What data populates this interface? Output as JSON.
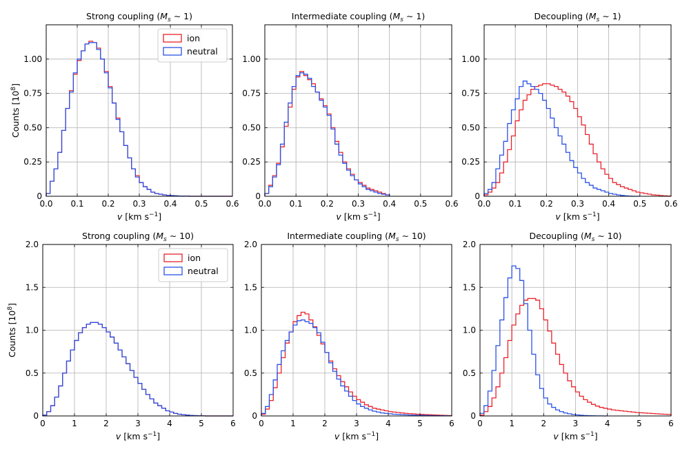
{
  "figure": {
    "ylabel": "Counts [10",
    "ylabel_sup": "8",
    "ylabel_end": "]",
    "xlabel_v": "v",
    "xlabel_units": " [km s",
    "xlabel_exp": "−1",
    "xlabel_end": "]",
    "colors": {
      "ion": "#e8212a",
      "neutral": "#2950e6",
      "grid": "#b0b0b0"
    }
  },
  "chart_data": [
    {
      "type": "histogram",
      "title": "Strong coupling (",
      "title_math": "M",
      "title_sub": "s",
      "title_end": " ∼ 1)",
      "xlim": [
        0,
        0.6
      ],
      "ylim": [
        0,
        1.25
      ],
      "xticks": [
        0,
        0.1,
        0.2,
        0.3,
        0.4,
        0.5,
        0.6
      ],
      "xtick_labels": [
        "0.0",
        "0.1",
        "0.2",
        "0.3",
        "0.4",
        "0.5",
        "0.6"
      ],
      "yticks": [
        0,
        0.25,
        0.5,
        0.75,
        1.0
      ],
      "ytick_labels": [
        "0",
        "0.25",
        "0.50",
        "0.75",
        "1.00"
      ],
      "show_ylabel": true,
      "legend": [
        "ion",
        "neutral"
      ],
      "series": [
        {
          "name": "ion",
          "color": "#e8212a",
          "edges": [
            0,
            0.6
          ],
          "values": [
            0.02,
            0.11,
            0.2,
            0.32,
            0.48,
            0.64,
            0.77,
            0.89,
            0.99,
            1.06,
            1.11,
            1.13,
            1.12,
            1.08,
            1.0,
            0.91,
            0.8,
            0.68,
            0.57,
            0.47,
            0.37,
            0.28,
            0.2,
            0.15,
            0.1,
            0.07,
            0.05,
            0.03,
            0.02,
            0.015,
            0.01,
            0.007,
            0.005,
            0.003,
            0.002,
            0.001,
            0.001,
            0,
            0,
            0,
            0,
            0,
            0,
            0,
            0,
            0,
            0,
            0
          ]
        },
        {
          "name": "neutral",
          "color": "#2950e6",
          "edges": [
            0,
            0.6
          ],
          "values": [
            0.02,
            0.11,
            0.2,
            0.32,
            0.48,
            0.64,
            0.76,
            0.9,
            1.0,
            1.06,
            1.11,
            1.12,
            1.12,
            1.07,
            1.0,
            0.9,
            0.79,
            0.68,
            0.56,
            0.47,
            0.37,
            0.28,
            0.2,
            0.14,
            0.1,
            0.07,
            0.05,
            0.03,
            0.02,
            0.015,
            0.01,
            0.007,
            0.005,
            0.003,
            0.002,
            0.001,
            0.001,
            0,
            0,
            0,
            0,
            0,
            0,
            0,
            0,
            0,
            0,
            0
          ]
        }
      ]
    },
    {
      "type": "histogram",
      "title": "Intermediate coupling (",
      "title_math": "M",
      "title_sub": "s",
      "title_end": " ∼ 1)",
      "xlim": [
        0,
        0.6
      ],
      "ylim": [
        0,
        1.25
      ],
      "xticks": [
        0,
        0.1,
        0.2,
        0.3,
        0.4,
        0.5,
        0.6
      ],
      "xtick_labels": [
        "0.0",
        "0.1",
        "0.2",
        "0.3",
        "0.4",
        "0.5",
        "0.6"
      ],
      "yticks": [
        0,
        0.25,
        0.5,
        0.75,
        1.0
      ],
      "ytick_labels": [
        "0",
        "0.25",
        "0.50",
        "0.75",
        "1.00"
      ],
      "show_ylabel": false,
      "legend": [],
      "series": [
        {
          "name": "ion",
          "color": "#e8212a",
          "edges": [
            0,
            0.4
          ],
          "values": [
            0.02,
            0.08,
            0.15,
            0.24,
            0.36,
            0.51,
            0.65,
            0.78,
            0.87,
            0.91,
            0.88,
            0.85,
            0.82,
            0.76,
            0.71,
            0.66,
            0.6,
            0.5,
            0.4,
            0.32,
            0.25,
            0.2,
            0.16,
            0.12,
            0.1,
            0.08,
            0.06,
            0.05,
            0.04,
            0.03,
            0.02,
            0.01
          ]
        },
        {
          "name": "neutral",
          "color": "#2950e6",
          "edges": [
            0,
            0.4
          ],
          "values": [
            0.02,
            0.07,
            0.14,
            0.23,
            0.38,
            0.54,
            0.68,
            0.8,
            0.88,
            0.9,
            0.89,
            0.86,
            0.8,
            0.76,
            0.7,
            0.65,
            0.59,
            0.49,
            0.38,
            0.3,
            0.24,
            0.19,
            0.15,
            0.12,
            0.09,
            0.07,
            0.05,
            0.04,
            0.03,
            0.02,
            0.015,
            0.01
          ]
        }
      ]
    },
    {
      "type": "histogram",
      "title": "Decoupling (",
      "title_math": "M",
      "title_sub": "s",
      "title_end": " ∼ 1)",
      "xlim": [
        0,
        0.6
      ],
      "ylim": [
        0,
        1.25
      ],
      "xticks": [
        0,
        0.1,
        0.2,
        0.3,
        0.4,
        0.5,
        0.6
      ],
      "xtick_labels": [
        "0.0",
        "0.1",
        "0.2",
        "0.3",
        "0.4",
        "0.5",
        "0.6"
      ],
      "yticks": [
        0,
        0.25,
        0.5,
        0.75,
        1.0
      ],
      "ytick_labels": [
        "0",
        "0.25",
        "0.50",
        "0.75",
        "1.00"
      ],
      "show_ylabel": false,
      "legend": [],
      "series": [
        {
          "name": "ion",
          "color": "#e8212a",
          "edges": [
            0,
            0.6
          ],
          "values": [
            0.01,
            0.03,
            0.06,
            0.1,
            0.17,
            0.25,
            0.34,
            0.44,
            0.55,
            0.63,
            0.7,
            0.74,
            0.78,
            0.8,
            0.81,
            0.82,
            0.82,
            0.81,
            0.8,
            0.78,
            0.76,
            0.73,
            0.69,
            0.64,
            0.58,
            0.52,
            0.45,
            0.38,
            0.31,
            0.25,
            0.2,
            0.16,
            0.13,
            0.1,
            0.085,
            0.07,
            0.06,
            0.05,
            0.04,
            0.03,
            0.025,
            0.02,
            0.015,
            0.01,
            0.008,
            0.005,
            0.003,
            0.002
          ]
        },
        {
          "name": "neutral",
          "color": "#2950e6",
          "edges": [
            0,
            0.5
          ],
          "values": [
            0.02,
            0.05,
            0.1,
            0.2,
            0.3,
            0.4,
            0.53,
            0.63,
            0.71,
            0.8,
            0.84,
            0.82,
            0.8,
            0.78,
            0.75,
            0.7,
            0.64,
            0.57,
            0.5,
            0.44,
            0.38,
            0.32,
            0.26,
            0.21,
            0.17,
            0.13,
            0.1,
            0.08,
            0.06,
            0.05,
            0.04,
            0.03,
            0.02,
            0.015,
            0.01,
            0.006,
            0.003,
            0.001,
            0,
            0
          ]
        }
      ]
    },
    {
      "type": "histogram",
      "title": "Strong coupling (",
      "title_math": "M",
      "title_sub": "s",
      "title_end": " ∼ 10)",
      "xlim": [
        0,
        6
      ],
      "ylim": [
        0,
        2.0
      ],
      "xticks": [
        0,
        1,
        2,
        3,
        4,
        5,
        6
      ],
      "xtick_labels": [
        "0",
        "1",
        "2",
        "3",
        "4",
        "5",
        "6"
      ],
      "yticks": [
        0,
        0.5,
        1.0,
        1.5,
        2.0
      ],
      "ytick_labels": [
        "0",
        "0.5",
        "1.0",
        "1.5",
        "2.0"
      ],
      "show_ylabel": true,
      "legend": [
        "ion",
        "neutral"
      ],
      "series": [
        {
          "name": "ion",
          "color": "#e8212a",
          "edges": [
            0,
            6
          ],
          "values": [
            0.01,
            0.05,
            0.12,
            0.22,
            0.35,
            0.5,
            0.64,
            0.77,
            0.88,
            0.97,
            1.03,
            1.07,
            1.09,
            1.09,
            1.07,
            1.03,
            0.98,
            0.92,
            0.85,
            0.77,
            0.69,
            0.61,
            0.53,
            0.45,
            0.38,
            0.31,
            0.25,
            0.2,
            0.15,
            0.12,
            0.09,
            0.06,
            0.045,
            0.03,
            0.02,
            0.015,
            0.01,
            0.006,
            0.004,
            0.002,
            0.001,
            0,
            0,
            0,
            0,
            0,
            0,
            0
          ]
        },
        {
          "name": "neutral",
          "color": "#2950e6",
          "edges": [
            0,
            6
          ],
          "values": [
            0.01,
            0.05,
            0.12,
            0.22,
            0.35,
            0.5,
            0.64,
            0.77,
            0.88,
            0.97,
            1.03,
            1.07,
            1.09,
            1.09,
            1.07,
            1.03,
            0.98,
            0.92,
            0.85,
            0.77,
            0.69,
            0.61,
            0.53,
            0.45,
            0.38,
            0.31,
            0.25,
            0.2,
            0.15,
            0.12,
            0.09,
            0.06,
            0.045,
            0.03,
            0.02,
            0.015,
            0.01,
            0.006,
            0.004,
            0.002,
            0.001,
            0,
            0,
            0,
            0,
            0,
            0,
            0
          ]
        }
      ]
    },
    {
      "type": "histogram",
      "title": "Intermediate coupling (",
      "title_math": "M",
      "title_sub": "s",
      "title_end": " ∼ 10)",
      "xlim": [
        0,
        6
      ],
      "ylim": [
        0,
        2.0
      ],
      "xticks": [
        0,
        1,
        2,
        3,
        4,
        5,
        6
      ],
      "xtick_labels": [
        "0",
        "1",
        "2",
        "3",
        "4",
        "5",
        "6"
      ],
      "yticks": [
        0,
        0.5,
        1.0,
        1.5,
        2.0
      ],
      "ytick_labels": [
        "0",
        "0.5",
        "1.0",
        "1.5",
        "2.0"
      ],
      "show_ylabel": false,
      "legend": [],
      "series": [
        {
          "name": "ion",
          "color": "#e8212a",
          "edges": [
            0,
            6
          ],
          "values": [
            0.02,
            0.08,
            0.18,
            0.33,
            0.5,
            0.68,
            0.85,
            0.98,
            1.1,
            1.17,
            1.21,
            1.19,
            1.12,
            1.04,
            0.94,
            0.84,
            0.74,
            0.64,
            0.55,
            0.47,
            0.4,
            0.34,
            0.28,
            0.23,
            0.19,
            0.16,
            0.13,
            0.11,
            0.09,
            0.08,
            0.07,
            0.06,
            0.05,
            0.045,
            0.04,
            0.035,
            0.03,
            0.027,
            0.024,
            0.02,
            0.018,
            0.016,
            0.014,
            0.012,
            0.01,
            0.008,
            0.006,
            0.005
          ]
        },
        {
          "name": "neutral",
          "color": "#2950e6",
          "edges": [
            0,
            6
          ],
          "values": [
            0.03,
            0.11,
            0.25,
            0.42,
            0.6,
            0.76,
            0.88,
            0.98,
            1.06,
            1.11,
            1.12,
            1.1,
            1.08,
            1.03,
            0.97,
            0.86,
            0.74,
            0.62,
            0.52,
            0.43,
            0.35,
            0.29,
            0.23,
            0.18,
            0.14,
            0.11,
            0.09,
            0.07,
            0.055,
            0.045,
            0.035,
            0.03,
            0.025,
            0.02,
            0.018,
            0.015,
            0.013,
            0.011,
            0.01,
            0.008,
            0.007,
            0.006,
            0.005,
            0.004,
            0.003,
            0.002,
            0.002,
            0.001
          ]
        }
      ]
    },
    {
      "type": "histogram",
      "title": "Decoupling (",
      "title_math": "M",
      "title_sub": "s",
      "title_end": " ∼ 10)",
      "xlim": [
        0,
        6
      ],
      "ylim": [
        0,
        2.0
      ],
      "xticks": [
        0,
        1,
        2,
        3,
        4,
        5,
        6
      ],
      "xtick_labels": [
        "0",
        "1",
        "2",
        "3",
        "4",
        "5",
        "6"
      ],
      "yticks": [
        0,
        0.5,
        1.0,
        1.5,
        2.0
      ],
      "ytick_labels": [
        "0",
        "0.5",
        "1.0",
        "1.5",
        "2.0"
      ],
      "show_ylabel": false,
      "legend": [],
      "series": [
        {
          "name": "ion",
          "color": "#e8212a",
          "edges": [
            0,
            6
          ],
          "values": [
            0.01,
            0.05,
            0.11,
            0.21,
            0.34,
            0.5,
            0.68,
            0.88,
            1.06,
            1.19,
            1.29,
            1.35,
            1.37,
            1.37,
            1.35,
            1.25,
            1.12,
            0.99,
            0.85,
            0.72,
            0.6,
            0.5,
            0.41,
            0.34,
            0.28,
            0.23,
            0.19,
            0.16,
            0.135,
            0.115,
            0.1,
            0.09,
            0.08,
            0.07,
            0.065,
            0.06,
            0.055,
            0.05,
            0.045,
            0.04,
            0.037,
            0.034,
            0.031,
            0.028,
            0.025,
            0.022,
            0.02,
            0.018
          ]
        },
        {
          "name": "neutral",
          "color": "#2950e6",
          "edges": [
            0,
            4
          ],
          "values": [
            0.03,
            0.12,
            0.29,
            0.53,
            0.82,
            1.12,
            1.38,
            1.61,
            1.75,
            1.72,
            1.58,
            1.31,
            1.0,
            0.72,
            0.48,
            0.32,
            0.21,
            0.14,
            0.1,
            0.07,
            0.05,
            0.035,
            0.025,
            0.017,
            0.012,
            0.008,
            0.005,
            0.003,
            0.002,
            0.001,
            0.001,
            0
          ]
        }
      ]
    }
  ]
}
